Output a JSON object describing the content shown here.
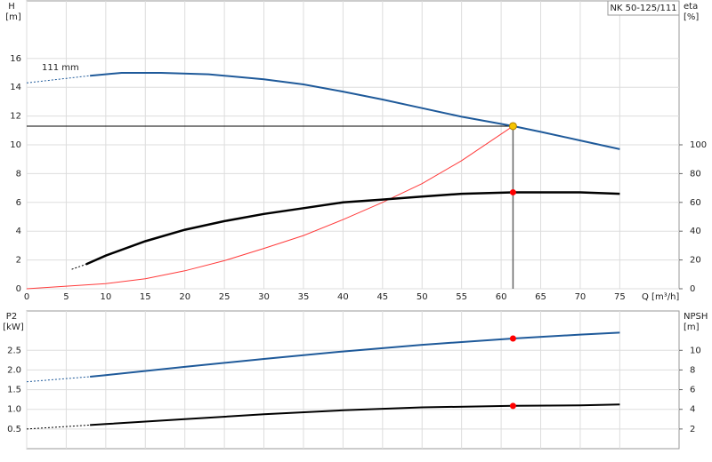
{
  "chart_data": [
    {
      "type": "line",
      "label_box": "NK 50-125/111",
      "ylabel": "H",
      "yunit": "[m]",
      "y2label": "eta",
      "y2unit": "[%]",
      "xlabel": "Q [m³/h]",
      "annotation": "111 mm",
      "xlim": [
        0,
        82.5
      ],
      "xticks": [
        0,
        5,
        10,
        15,
        20,
        25,
        30,
        35,
        40,
        45,
        50,
        55,
        60,
        65,
        70,
        75
      ],
      "xtick_labels": true,
      "ylim": [
        0,
        20
      ],
      "yticks": [
        0,
        2,
        4,
        6,
        8,
        10,
        12,
        14,
        16
      ],
      "y2lim": [
        0,
        200
      ],
      "y2ticks": [
        0,
        20,
        40,
        60,
        80,
        100
      ],
      "grid": true,
      "duty_point": {
        "x": 61.5,
        "y": 11.3,
        "color": "#f5c400"
      },
      "series": [
        {
          "color": "#1f5a9a",
          "dashed": true,
          "width": 1,
          "x": [
            0,
            8
          ],
          "values": [
            14.3,
            14.8
          ]
        },
        {
          "color": "#1f5a9a",
          "width": 2,
          "x": [
            8,
            12,
            17,
            23,
            30,
            35,
            40,
            45,
            50,
            55,
            61.5,
            65,
            70,
            75
          ],
          "values": [
            14.8,
            15.0,
            15.0,
            14.9,
            14.55,
            14.2,
            13.7,
            13.15,
            12.55,
            11.95,
            11.3,
            10.9,
            10.3,
            9.7
          ]
        },
        {
          "color": "#ff3b3b",
          "width": 1,
          "x": [
            0,
            10,
            15,
            20,
            25,
            30,
            35,
            40,
            45,
            50,
            55,
            61.5
          ],
          "values": [
            0,
            0.35,
            0.7,
            1.25,
            1.95,
            2.8,
            3.7,
            4.8,
            6.0,
            7.3,
            8.9,
            11.3
          ]
        },
        {
          "color": "#000000",
          "dashed": true,
          "width": 1,
          "axis": "y2",
          "x": [
            5.7,
            7.5
          ],
          "values": [
            13.5,
            17
          ]
        },
        {
          "color": "#000000",
          "width": 2.5,
          "axis": "y2",
          "x": [
            7.5,
            10,
            15,
            20,
            25,
            30,
            35,
            40,
            45,
            50,
            55,
            61.5,
            70,
            75
          ],
          "values": [
            17,
            23,
            33,
            41,
            47,
            52,
            56,
            60,
            62,
            64,
            66,
            67,
            67,
            66
          ]
        },
        {
          "mode": "marker",
          "color": "#ff0000",
          "axis": "y2",
          "x": [
            61.5
          ],
          "values": [
            67
          ]
        }
      ]
    },
    {
      "type": "line",
      "ylabel": "P2",
      "yunit": "[kW]",
      "y2label": "NPSH",
      "y2unit": "[m]",
      "xlim": [
        0,
        82.5
      ],
      "xticks": [
        0,
        5,
        10,
        15,
        20,
        25,
        30,
        35,
        40,
        45,
        50,
        55,
        60,
        65,
        70,
        75
      ],
      "xtick_labels": false,
      "ylim": [
        0,
        3.5
      ],
      "yticks": [
        0.5,
        {
          "value": 1.0,
          "label": "1.0"
        },
        1.5,
        {
          "value": 2.0,
          "label": "2.0"
        },
        2.5
      ],
      "y2lim": [
        0,
        14
      ],
      "y2ticks": [
        2,
        4,
        6,
        8,
        10
      ],
      "grid": true,
      "series": [
        {
          "color": "#1f5a9a",
          "dashed": true,
          "width": 1,
          "x": [
            0,
            8
          ],
          "values": [
            1.7,
            1.83
          ]
        },
        {
          "color": "#1f5a9a",
          "width": 2,
          "x": [
            8,
            10,
            20,
            30,
            40,
            50,
            61.5,
            70,
            75
          ],
          "values": [
            1.83,
            1.87,
            2.08,
            2.28,
            2.47,
            2.64,
            2.8,
            2.9,
            2.95
          ]
        },
        {
          "color": "#000000",
          "dashed": true,
          "width": 1,
          "axis": "y2",
          "x": [
            0,
            8
          ],
          "values": [
            2.0,
            2.4
          ]
        },
        {
          "color": "#000000",
          "width": 2,
          "axis": "y2",
          "x": [
            8,
            10,
            20,
            30,
            40,
            50,
            61.5,
            70,
            75
          ],
          "values": [
            2.4,
            2.5,
            3.0,
            3.5,
            3.9,
            4.2,
            4.35,
            4.4,
            4.5
          ]
        },
        {
          "mode": "marker",
          "color": "#ff0000",
          "x": [
            61.5
          ],
          "values": [
            2.8
          ]
        },
        {
          "mode": "marker",
          "color": "#ff0000",
          "axis": "y2",
          "x": [
            61.5
          ],
          "values": [
            4.35
          ]
        }
      ]
    }
  ]
}
